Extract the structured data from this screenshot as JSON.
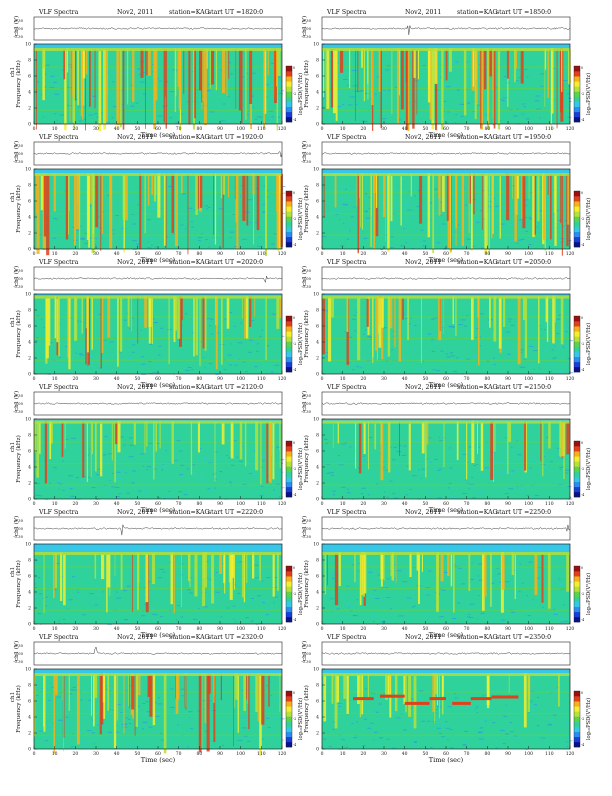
{
  "page": {
    "background": "#ffffff"
  },
  "colors": {
    "scale": [
      "#08108a",
      "#1a3fd6",
      "#2a8ef0",
      "#35c6e8",
      "#2fd29a",
      "#5ed24a",
      "#b6e03a",
      "#f4ee2e",
      "#f7b21a",
      "#e2401c",
      "#9a1010"
    ],
    "band_top": "#35c6e8",
    "noise_base": "#2fd29a",
    "waveform": "#333333"
  },
  "labels": {
    "title": "VLF Spectra",
    "date": "Nov2, 2011",
    "station": "station=KAG",
    "start_prefix": "start  UT  =",
    "ch_label": "ch1 (V)",
    "ylabel_left": "ch1\nFrequency (kHz)",
    "ylabel_freq": "Frequency (kHz)",
    "xlabel": "Time (sec)",
    "cbar_label": "log₁₀PSD(V²/Hz)"
  },
  "chart_data": [
    {
      "type": "heatmap",
      "start": "1820:0",
      "title": "VLF Spectra",
      "date": "Nov2, 2011",
      "station": "station=KAG",
      "xlabel": "Time (sec)",
      "ylabel": "Frequency (kHz)",
      "xlim": [
        0,
        120
      ],
      "ylim": [
        0,
        10
      ],
      "xticks": [
        0,
        10,
        20,
        30,
        40,
        50,
        60,
        70,
        80,
        90,
        100,
        110,
        120
      ],
      "yticks": [
        0,
        2,
        4,
        6,
        8,
        10
      ],
      "wave_ticks": [
        "0.30",
        "0.00",
        "-0.30"
      ],
      "cbar_ticks": [
        "0",
        "-2",
        "-4"
      ],
      "activity": 0.95,
      "top_khz": 9.5,
      "wave_spikes": []
    },
    {
      "type": "heatmap",
      "start": "1850:0",
      "title": "VLF Spectra",
      "date": "Nov2, 2011",
      "station": "station=KAG",
      "xlabel": "Time (sec)",
      "ylabel": "Frequency (kHz)",
      "xlim": [
        0,
        120
      ],
      "ylim": [
        0,
        10
      ],
      "xticks": [
        0,
        10,
        20,
        30,
        40,
        50,
        60,
        70,
        80,
        90,
        100,
        110,
        120
      ],
      "yticks": [
        0,
        2,
        4,
        6,
        8,
        10
      ],
      "wave_ticks": [
        "0.30",
        "0.00",
        "-0.30"
      ],
      "cbar_ticks": [
        "0",
        "-2",
        "-4"
      ],
      "activity": 0.9,
      "top_khz": 9.5,
      "wave_spikes": [
        42
      ]
    },
    {
      "type": "heatmap",
      "start": "1920:0",
      "title": "VLF Spectra",
      "date": "Nov2, 2011",
      "station": "station=KAG",
      "xlabel": "Time (sec)",
      "ylabel": "Frequency (kHz)",
      "xlim": [
        0,
        120
      ],
      "ylim": [
        0,
        10
      ],
      "xticks": [
        0,
        10,
        20,
        30,
        40,
        50,
        60,
        70,
        80,
        90,
        100,
        110,
        120
      ],
      "yticks": [
        0,
        2,
        4,
        6,
        8,
        10
      ],
      "wave_ticks": [
        "0.30",
        "0.00",
        "-0.30"
      ],
      "cbar_ticks": [
        "0",
        "-2",
        "-4"
      ],
      "activity": 0.8,
      "top_khz": 9.5,
      "wave_spikes": [
        119
      ]
    },
    {
      "type": "heatmap",
      "start": "1950:0",
      "title": "VLF Spectra",
      "date": "Nov2, 2011",
      "station": "station=KAG",
      "xlabel": "Time (sec)",
      "ylabel": "Frequency (kHz)",
      "xlim": [
        0,
        120
      ],
      "ylim": [
        0,
        10
      ],
      "xticks": [
        0,
        10,
        20,
        30,
        40,
        50,
        60,
        70,
        80,
        90,
        100,
        110,
        120
      ],
      "yticks": [
        0,
        2,
        4,
        6,
        8,
        10
      ],
      "wave_ticks": [
        "0.30",
        "0.00",
        "-0.30"
      ],
      "cbar_ticks": [
        "0",
        "-2",
        "-4"
      ],
      "activity": 0.8,
      "top_khz": 9.5,
      "wave_spikes": []
    },
    {
      "type": "heatmap",
      "start": "2020:0",
      "title": "VLF Spectra",
      "date": "Nov2, 2011",
      "station": "station=KAG",
      "xlabel": "Time (sec)",
      "ylabel": "Frequency (kHz)",
      "xlim": [
        0,
        120
      ],
      "ylim": [
        0,
        10
      ],
      "xticks": [
        0,
        10,
        20,
        30,
        40,
        50,
        60,
        70,
        80,
        90,
        100,
        110,
        120
      ],
      "yticks": [
        0,
        2,
        4,
        6,
        8,
        10
      ],
      "wave_ticks": [
        "0.30",
        "0.00",
        "-0.30"
      ],
      "cbar_ticks": [
        "0",
        "-2",
        "-4"
      ],
      "activity": 0.55,
      "top_khz": 9.8,
      "wave_spikes": [
        112
      ]
    },
    {
      "type": "heatmap",
      "start": "2050:0",
      "title": "VLF Spectra",
      "date": "Nov2, 2011",
      "station": "station=KAG",
      "xlabel": "Time (sec)",
      "ylabel": "Frequency (kHz)",
      "xlim": [
        0,
        120
      ],
      "ylim": [
        0,
        10
      ],
      "xticks": [
        0,
        10,
        20,
        30,
        40,
        50,
        60,
        70,
        80,
        90,
        100,
        110,
        120
      ],
      "yticks": [
        0,
        2,
        4,
        6,
        8,
        10
      ],
      "wave_ticks": [
        "0.30",
        "0.00",
        "-0.30"
      ],
      "cbar_ticks": [
        "0",
        "-2",
        "-4"
      ],
      "activity": 0.45,
      "top_khz": 9.8,
      "wave_spikes": []
    },
    {
      "type": "heatmap",
      "start": "2120:0",
      "title": "VLF Spectra",
      "date": "Nov2, 2011",
      "station": "station=KAG",
      "xlabel": "Time (sec)",
      "ylabel": "Frequency (kHz)",
      "xlim": [
        0,
        120
      ],
      "ylim": [
        0,
        10
      ],
      "xticks": [
        0,
        10,
        20,
        30,
        40,
        50,
        60,
        70,
        80,
        90,
        100,
        110,
        120
      ],
      "yticks": [
        0,
        2,
        4,
        6,
        8,
        10
      ],
      "wave_ticks": [
        "0.30",
        "0.00",
        "-0.30"
      ],
      "cbar_ticks": [
        "0",
        "-2",
        "-4"
      ],
      "activity": 0.35,
      "top_khz": 9.8,
      "wave_spikes": []
    },
    {
      "type": "heatmap",
      "start": "2150:0",
      "title": "VLF Spectra",
      "date": "Nov2, 2011",
      "station": "station=KAG",
      "xlabel": "Time (sec)",
      "ylabel": "Frequency (kHz)",
      "xlim": [
        0,
        120
      ],
      "ylim": [
        0,
        10
      ],
      "xticks": [
        0,
        10,
        20,
        30,
        40,
        50,
        60,
        70,
        80,
        90,
        100,
        110,
        120
      ],
      "yticks": [
        0,
        2,
        4,
        6,
        8,
        10
      ],
      "wave_ticks": [
        "0.30",
        "0.00",
        "-0.30"
      ],
      "cbar_ticks": [
        "0",
        "-2",
        "-4"
      ],
      "activity": 0.3,
      "top_khz": 9.8,
      "wave_spikes": []
    },
    {
      "type": "heatmap",
      "start": "2220:0",
      "title": "VLF Spectra",
      "date": "Nov2, 2011",
      "station": "station=KAG",
      "xlabel": "Time (sec)",
      "ylabel": "Frequency (kHz)",
      "xlim": [
        0,
        120
      ],
      "ylim": [
        0,
        10
      ],
      "xticks": [
        0,
        10,
        20,
        30,
        40,
        50,
        60,
        70,
        80,
        90,
        100,
        110,
        120
      ],
      "yticks": [
        0,
        2,
        4,
        6,
        8,
        10
      ],
      "wave_ticks": [
        "0.30",
        "0.00",
        "-0.30"
      ],
      "cbar_ticks": [
        "0",
        "-2",
        "-4"
      ],
      "activity": 0.4,
      "top_khz": 9.0,
      "wave_spikes": [
        43
      ]
    },
    {
      "type": "heatmap",
      "start": "2250:0",
      "title": "VLF Spectra",
      "date": "Nov2, 2011",
      "station": "station=KAG",
      "xlabel": "Time (sec)",
      "ylabel": "Frequency (kHz)",
      "xlim": [
        0,
        120
      ],
      "ylim": [
        0,
        10
      ],
      "xticks": [
        0,
        10,
        20,
        30,
        40,
        50,
        60,
        70,
        80,
        90,
        100,
        110,
        120
      ],
      "yticks": [
        0,
        2,
        4,
        6,
        8,
        10
      ],
      "wave_ticks": [
        "0.30",
        "0.00",
        "-0.30"
      ],
      "cbar_ticks": [
        "0",
        "-2",
        "-4"
      ],
      "activity": 0.4,
      "top_khz": 9.0,
      "wave_spikes": [
        119
      ]
    },
    {
      "type": "heatmap",
      "start": "2320:0",
      "title": "VLF Spectra",
      "date": "Nov2, 2011",
      "station": "station=KAG",
      "xlabel": "Time (sec)",
      "ylabel": "Frequency (kHz)",
      "xlim": [
        0,
        120
      ],
      "ylim": [
        0,
        10
      ],
      "xticks": [
        0,
        10,
        20,
        30,
        40,
        50,
        60,
        70,
        80,
        90,
        100,
        110,
        120
      ],
      "yticks": [
        0,
        2,
        4,
        6,
        8,
        10
      ],
      "wave_ticks": [
        "0.30",
        "0.00",
        "-0.30"
      ],
      "cbar_ticks": [
        "0",
        "-2",
        "-4"
      ],
      "activity": 0.75,
      "top_khz": 9.5,
      "wave_spikes": [
        30
      ]
    },
    {
      "type": "heatmap",
      "start": "2350:0",
      "title": "VLF Spectra",
      "date": "Nov2, 2011",
      "station": "station=KAG",
      "xlabel": "Time (sec)",
      "ylabel": "Frequency (kHz)",
      "xlim": [
        0,
        120
      ],
      "ylim": [
        0,
        10
      ],
      "xticks": [
        0,
        10,
        20,
        30,
        40,
        50,
        60,
        70,
        80,
        90,
        100,
        110,
        120
      ],
      "yticks": [
        0,
        2,
        4,
        6,
        8,
        10
      ],
      "wave_ticks": [
        "0.30",
        "0.00",
        "-0.30"
      ],
      "cbar_ticks": [
        "0",
        "-2",
        "-4"
      ],
      "activity": 0.25,
      "top_khz": 9.5,
      "wave_spikes": [],
      "transmitter_segments": [
        [
          15,
          25,
          6.3
        ],
        [
          28,
          40,
          6.6
        ],
        [
          40,
          52,
          5.7
        ],
        [
          52,
          60,
          6.3
        ],
        [
          63,
          72,
          5.7
        ],
        [
          72,
          82,
          6.3
        ],
        [
          82,
          95,
          6.5
        ]
      ]
    }
  ]
}
